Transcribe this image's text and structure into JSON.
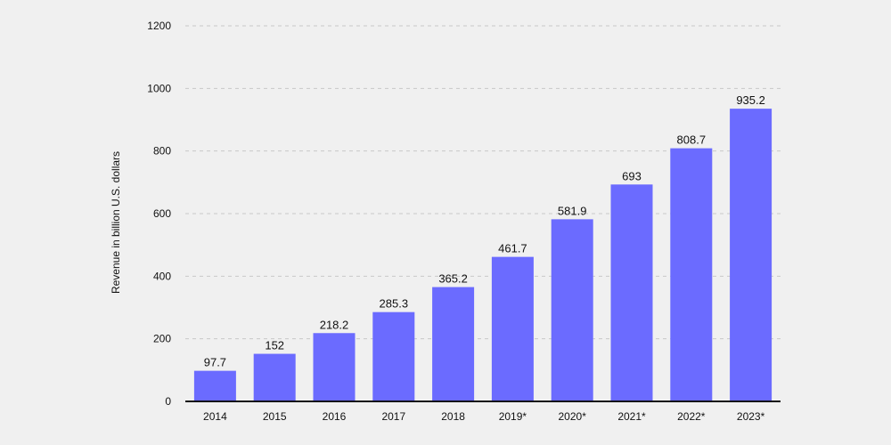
{
  "chart_data": {
    "type": "bar",
    "title": "",
    "xlabel": "",
    "ylabel": "Revenue in billion U.S. dollars",
    "categories": [
      "2014",
      "2015",
      "2016",
      "2017",
      "2018",
      "2019*",
      "2020*",
      "2021*",
      "2022*",
      "2023*"
    ],
    "values": [
      97.7,
      152,
      218.2,
      285.3,
      365.2,
      461.7,
      581.9,
      693,
      808.7,
      935.2
    ],
    "value_labels": [
      "97.7",
      "152",
      "218.2",
      "285.3",
      "365.2",
      "461.7",
      "581.9",
      "693",
      "808.7",
      "935.2"
    ],
    "yticks": [
      0,
      200,
      400,
      600,
      800,
      1000,
      1200
    ],
    "ylim": [
      0,
      1200
    ],
    "grid": true,
    "bar_color": "#6b6bff",
    "grid_color": "#c8c8c8",
    "axis_color": "#111111"
  }
}
